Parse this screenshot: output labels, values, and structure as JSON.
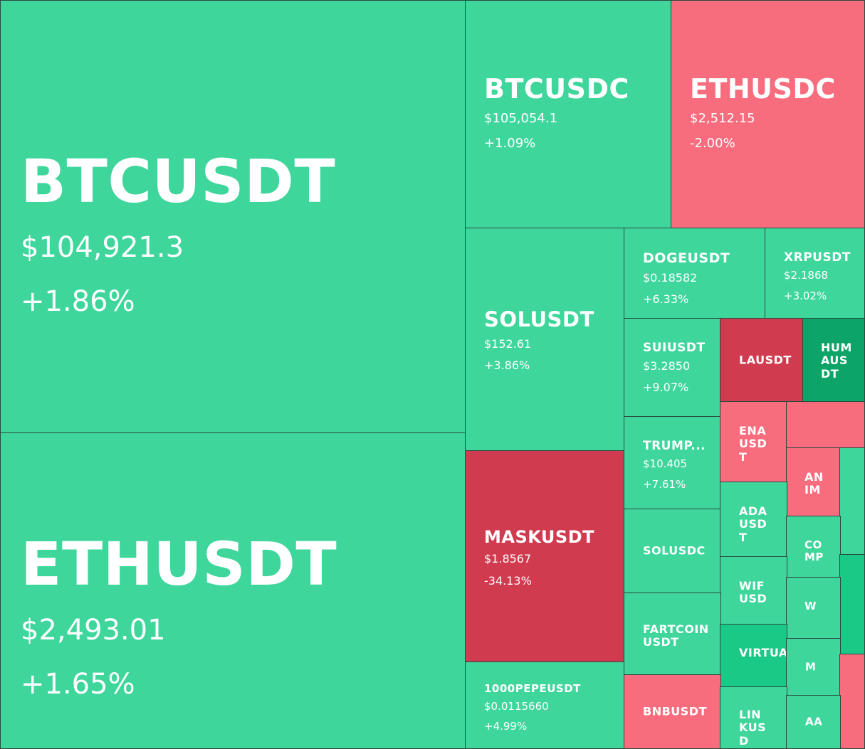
{
  "colors": {
    "up": "#3fd69c",
    "up_strong": "#1bc986",
    "up_dark": "#0da468",
    "down": "#f76d7e",
    "down_strong": "#d13b4f"
  },
  "chart_data": {
    "type": "heatmap",
    "tiles": [
      {
        "symbol": "BTCUSDT",
        "price": "$104,921.3",
        "change": "+1.86%",
        "change_pct": 1.86
      },
      {
        "symbol": "ETHUSDT",
        "price": "$2,493.01",
        "change": "+1.65%",
        "change_pct": 1.65
      },
      {
        "symbol": "BTCUSDC",
        "price": "$105,054.1",
        "change": "+1.09%",
        "change_pct": 1.09
      },
      {
        "symbol": "ETHUSDC",
        "price": "$2,512.15",
        "change": "-2.00%",
        "change_pct": -2.0
      },
      {
        "symbol": "SOLUSDT",
        "price": "$152.61",
        "change": "+3.86%",
        "change_pct": 3.86
      },
      {
        "symbol": "MASKUSDT",
        "price": "$1.8567",
        "change": "-34.13%",
        "change_pct": -34.13
      },
      {
        "symbol": "1000PEPEUSDT",
        "price": "$0.0115660",
        "change": "+4.99%",
        "change_pct": 4.99
      },
      {
        "symbol": "DOGEUSDT",
        "price": "$0.18582",
        "change": "+6.33%",
        "change_pct": 6.33
      },
      {
        "symbol": "XRPUSDT",
        "price": "$2.1868",
        "change": "+3.02%",
        "change_pct": 3.02
      },
      {
        "symbol": "SUIUSDT",
        "price": "$3.2850",
        "change": "+9.07%",
        "change_pct": 9.07
      },
      {
        "symbol": "LAUSDT",
        "price": "",
        "change": "",
        "change_pct": null
      },
      {
        "symbol": "HUMAUSDT",
        "price": "",
        "change": "",
        "change_pct": null
      },
      {
        "symbol": "TRUMP...",
        "price": "$10.405",
        "change": "+7.61%",
        "change_pct": 7.61
      },
      {
        "symbol": "ENAUSDT",
        "price": "",
        "change": "",
        "change_pct": null
      },
      {
        "symbol": "",
        "price": "",
        "change": "",
        "change_pct": null
      },
      {
        "symbol": "ANIM",
        "price": "",
        "change": "",
        "change_pct": null
      },
      {
        "symbol": "",
        "price": "",
        "change": "",
        "change_pct": null
      },
      {
        "symbol": "SOLUSDC",
        "price": "",
        "change": "",
        "change_pct": null
      },
      {
        "symbol": "ADAUSDT",
        "price": "",
        "change": "",
        "change_pct": null
      },
      {
        "symbol": "COMP",
        "price": "",
        "change": "",
        "change_pct": null
      },
      {
        "symbol": "",
        "price": "",
        "change": "",
        "change_pct": null
      },
      {
        "symbol": "WIFUSD",
        "price": "",
        "change": "",
        "change_pct": null
      },
      {
        "symbol": "W",
        "price": "",
        "change": "",
        "change_pct": null
      },
      {
        "symbol": "FARTCOINUSDT",
        "price": "",
        "change": "",
        "change_pct": null
      },
      {
        "symbol": "VIRTUAL",
        "price": "",
        "change": "",
        "change_pct": null
      },
      {
        "symbol": "M",
        "price": "",
        "change": "",
        "change_pct": null
      },
      {
        "symbol": "",
        "price": "",
        "change": "",
        "change_pct": null
      },
      {
        "symbol": "BNBUSDT",
        "price": "",
        "change": "",
        "change_pct": null
      },
      {
        "symbol": "LINKUSD",
        "price": "",
        "change": "",
        "change_pct": null
      },
      {
        "symbol": "AA",
        "price": "",
        "change": "",
        "change_pct": null
      }
    ]
  }
}
